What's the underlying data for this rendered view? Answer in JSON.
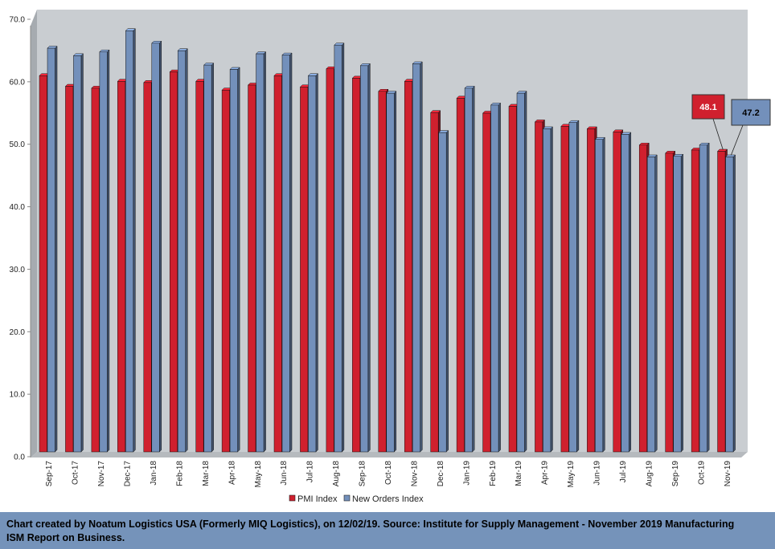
{
  "colors": {
    "pmi": "#d0202e",
    "new_orders": "#7390bb",
    "plot_bg": "#c9cdd1",
    "wall": "#a6abb0",
    "footer_bg": "#7593ba"
  },
  "chart_data": {
    "type": "bar",
    "title": "",
    "xlabel": "",
    "ylabel": "",
    "ylim": [
      0,
      70
    ],
    "yticks": [
      "0.0",
      "10.0",
      "20.0",
      "30.0",
      "40.0",
      "50.0",
      "60.0",
      "70.0"
    ],
    "grid": false,
    "legend_position": "bottom",
    "categories": [
      "Sep-17",
      "Oct-17",
      "Nov-17",
      "Dec-17",
      "Jan-18",
      "Feb-18",
      "Mar-18",
      "Apr-18",
      "May-18",
      "Jun-18",
      "Jul-18",
      "Aug-18",
      "Sep-18",
      "Oct-18",
      "Nov-18",
      "Dec-18",
      "Jan-19",
      "Feb-19",
      "Mar-19",
      "Apr-19",
      "May-19",
      "Jun-19",
      "Jul-19",
      "Aug-19",
      "Sep-19",
      "Oct-19",
      "Nov-19"
    ],
    "series": [
      {
        "name": "PMI Index",
        "values": [
          60.2,
          58.5,
          58.2,
          59.3,
          59.1,
          60.8,
          59.3,
          57.9,
          58.7,
          60.2,
          58.4,
          61.3,
          59.8,
          57.7,
          59.3,
          54.3,
          56.6,
          54.2,
          55.3,
          52.8,
          52.1,
          51.7,
          51.2,
          49.1,
          47.8,
          48.3,
          48.1
        ]
      },
      {
        "name": "New Orders Index",
        "values": [
          64.6,
          63.4,
          64.0,
          67.4,
          65.4,
          64.2,
          61.9,
          61.2,
          63.7,
          63.5,
          60.2,
          65.1,
          61.8,
          57.4,
          62.1,
          51.1,
          58.2,
          55.5,
          57.4,
          51.7,
          52.7,
          50.0,
          50.8,
          47.2,
          47.3,
          49.1,
          47.2
        ]
      }
    ],
    "annotations": [
      {
        "series": "PMI Index",
        "category": "Nov-19",
        "label": "48.1"
      },
      {
        "series": "New Orders Index",
        "category": "Nov-19",
        "label": "47.2"
      }
    ]
  },
  "footer": {
    "line1": "Chart created by Noatum Logistics USA (Formerly MIQ Logistics), on 12/02/19. Source: Institute for Supply Management - November 2019 Manufacturing",
    "line2": "ISM Report on Business."
  }
}
